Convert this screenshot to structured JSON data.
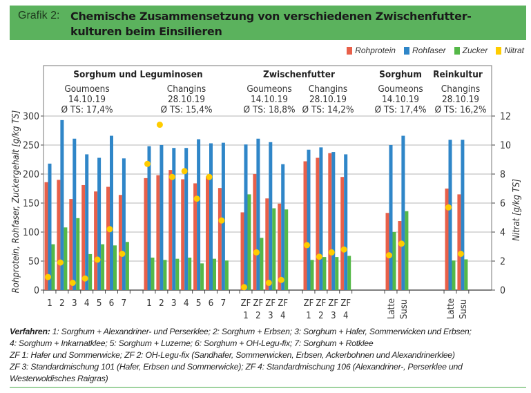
{
  "title": {
    "label": "Grafik 2:",
    "text": "Chemische Zusammensetzung von verschiedenen Zwischenfutter-kulturen beim Einsilieren",
    "line1": "Chemische Zusammensetzung von verschiedenen Zwischenfutter-",
    "line2": "kulturen beim Einsilieren"
  },
  "colors": {
    "rohprotein": "#e8604a",
    "rohfaser": "#2f86c8",
    "zucker": "#55b848",
    "nitrat": "#ffcc00",
    "title_bg": "#5bb25d"
  },
  "chart_data": {
    "type": "bar",
    "title": "Chemische Zusammensetzung von verschiedenen Zwischenfutterkulturen beim Einsilieren",
    "ylabel": "Rohprotein, Rohfaser, Zuckergehalt [g/kg TS]",
    "y2label": "Nitrat [g/kg TS]",
    "ylim": [
      0,
      300
    ],
    "y2lim": [
      0,
      12
    ],
    "yticks": [
      "0",
      "50",
      "100",
      "150",
      "200",
      "250",
      "300"
    ],
    "y2ticks": [
      "0",
      "2",
      "4",
      "6",
      "8",
      "10",
      "12"
    ],
    "grid": true,
    "legend": {
      "position": "top-right",
      "entries": [
        "Rohprotein",
        "Rohfaser",
        "Zucker",
        "Nitrat"
      ]
    },
    "group_headers": [
      {
        "title": "Sorghum und Leguminosen"
      },
      {
        "title": "Zwischenfutter"
      },
      {
        "title": "Sorghum"
      },
      {
        "title": "Reinkultur"
      }
    ],
    "groups": [
      {
        "site": "Goumoens",
        "date": "14.10.19",
        "ts": "Ø TS: 17,4%",
        "categories": [
          "1",
          "2",
          "3",
          "4",
          "5",
          "6",
          "7"
        ],
        "rohprotein": [
          186,
          190,
          157,
          181,
          170,
          178,
          164
        ],
        "rohfaser": [
          218,
          293,
          261,
          234,
          228,
          266,
          227
        ],
        "zucker": [
          79,
          108,
          124,
          62,
          79,
          77,
          83
        ],
        "nitrat": [
          0.9,
          1.9,
          0.5,
          0.8,
          2.1,
          4.2,
          2.5
        ]
      },
      {
        "site": "Changins",
        "date": "28.10.19",
        "ts": "Ø TS: 15,4%",
        "categories": [
          "1",
          "2",
          "3",
          "4",
          "5",
          "6",
          "7"
        ],
        "rohprotein": [
          193,
          198,
          207,
          191,
          184,
          196,
          176
        ],
        "rohfaser": [
          248,
          250,
          245,
          245,
          260,
          253,
          254
        ],
        "zucker": [
          56,
          52,
          54,
          56,
          46,
          54,
          51
        ],
        "nitrat": [
          8.7,
          11.4,
          7.8,
          8.2,
          6.3,
          7.8,
          4.8
        ]
      },
      {
        "site": "Goumeons",
        "date": "14.10.19",
        "ts": "Ø TS: 18,8%",
        "categories": [
          "ZF 1",
          "ZF 2",
          "ZF 3",
          "ZF 4"
        ],
        "rohprotein": [
          134,
          200,
          158,
          149
        ],
        "rohfaser": [
          251,
          261,
          255,
          217
        ],
        "zucker": [
          165,
          90,
          141,
          139
        ],
        "nitrat": [
          0.2,
          2.6,
          0.5,
          0.7
        ]
      },
      {
        "site": "Changins",
        "date": "28.10.19",
        "ts": "Ø TS: 14,2%",
        "categories": [
          "ZF 1",
          "ZF 2",
          "ZF 3",
          "ZF 4"
        ],
        "rohprotein": [
          222,
          228,
          236,
          195
        ],
        "rohfaser": [
          242,
          246,
          238,
          234
        ],
        "zucker": [
          52,
          57,
          57,
          59
        ],
        "nitrat": [
          3.1,
          2.3,
          2.6,
          2.8
        ]
      },
      {
        "site": "Goumeons",
        "date": "14.10.19",
        "ts": "Ø TS: 17,4%",
        "categories": [
          "Latte",
          "Susu"
        ],
        "rohprotein": [
          133,
          119
        ],
        "rohfaser": [
          250,
          266
        ],
        "zucker": [
          100,
          136
        ],
        "nitrat": [
          2.4,
          3.2
        ]
      },
      {
        "site": "Changins",
        "date": "28.10.19",
        "ts": "Ø TS: 16,2%",
        "categories": [
          "Latte",
          "Susu"
        ],
        "rohprotein": [
          175,
          165
        ],
        "rohfaser": [
          259,
          259
        ],
        "zucker": [
          51,
          53
        ],
        "nitrat": [
          5.7,
          2.5
        ]
      }
    ]
  },
  "footnote": {
    "label": "Verfahren:",
    "line1": " 1: Sorghum + Alexandriner- und Perserklee; 2: Sorghum + Erbsen; 3: Sorghum + Hafer, Sommerwicken und Erbsen;",
    "line2": "4: Sorghum + Inkarnatklee; 5: Sorghum + Luzerne; 6: Sorghum + OH-Legu-fix; 7: Sorghum + Rotklee",
    "line3": "ZF 1: Hafer und Sommerwicke; ZF 2: OH-Legu-fix (Sandhafer, Sommerwicken, Erbsen, Ackerbohnen und Alexandrinerklee)",
    "line4": "ZF 3: Standardmischung 101 (Hafer, Erbsen und Sommerwicke); ZF 4: Standardmischung 106 (Alexandriner-, Perserklee und",
    "line5": "Westerwoldisches Raigras)"
  }
}
